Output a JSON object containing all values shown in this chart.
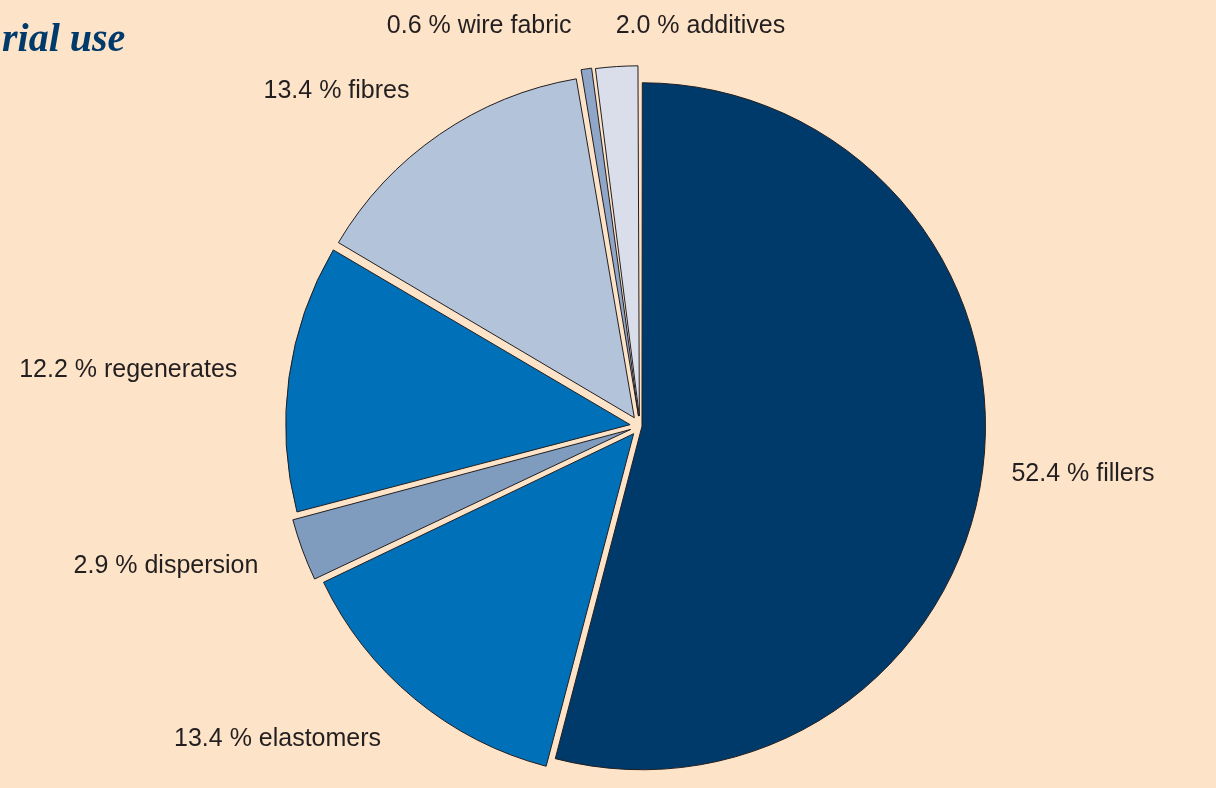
{
  "chart_data": {
    "type": "pie",
    "title": "rial use",
    "categories": [
      "fillers",
      "elastomers",
      "dispersion",
      "regenerates",
      "fibres",
      "wire fabric",
      "additives"
    ],
    "values": [
      52.4,
      13.4,
      2.9,
      12.2,
      13.4,
      0.6,
      2.0
    ],
    "value_labels": [
      "52.4 %",
      "13.4 %",
      "2.9 %",
      "12.2 %",
      "13.4 %",
      "0.6 %",
      "2.0 %"
    ],
    "colors": [
      "#003a6b",
      "#0070b8",
      "#7f9bbd",
      "#0070b8",
      "#b3c3da",
      "#8fa6c8",
      "#d9deea"
    ],
    "legend": false
  }
}
